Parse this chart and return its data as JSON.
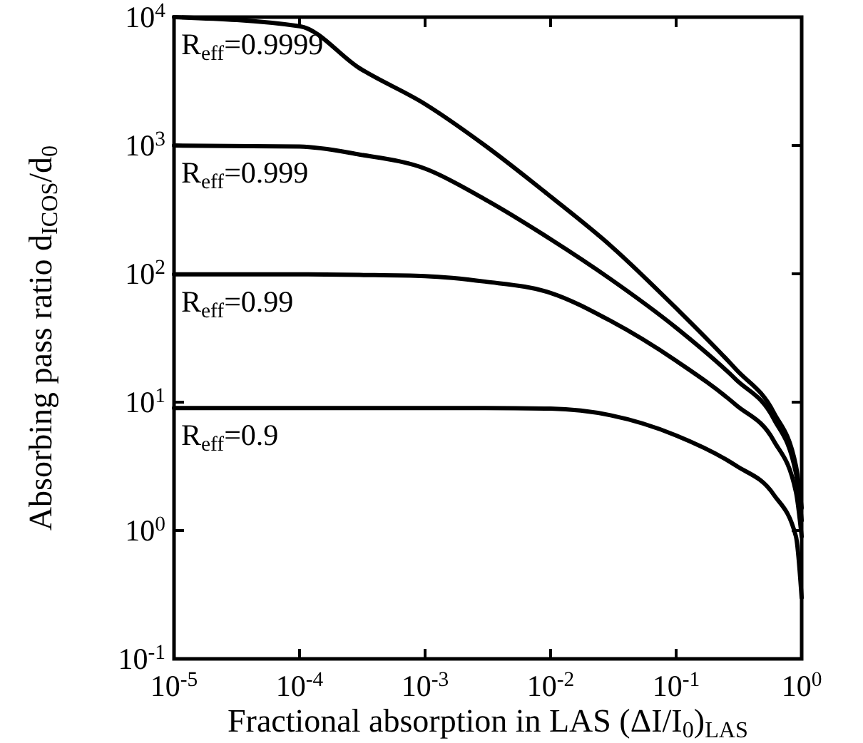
{
  "chart_data": {
    "type": "line",
    "xlabel": "Fractional absorption in LAS (ΔI/I$_{0}$)$_{LAS}$",
    "ylabel": "Absorbing pass ratio d$_{ICOS}$/d$_{0}$",
    "x": [
      1e-05,
      0.0001,
      0.0003,
      0.001,
      0.003,
      0.01,
      0.03,
      0.1,
      0.3,
      0.6,
      0.9,
      1
    ],
    "series": [
      {
        "name": "R$_{eff}$=0.9999",
        "color": "#000000",
        "values": [
          9999,
          8500,
          4000,
          2100,
          1000,
          400,
          166,
          54,
          18,
          8.3,
          3.2,
          1.5
        ]
      },
      {
        "name": "R$_{eff}$=0.999",
        "color": "#000000",
        "values": [
          999,
          980,
          850,
          660,
          380,
          186,
          91,
          38,
          15,
          7.4,
          2.8,
          1.2
        ]
      },
      {
        "name": "R$_{eff}$=0.99",
        "color": "#000000",
        "values": [
          99,
          99,
          98,
          96,
          87,
          71,
          43,
          21,
          9.5,
          5,
          2,
          0.9
        ]
      },
      {
        "name": "R$_{eff}$=0.9",
        "color": "#000000",
        "values": [
          9,
          9,
          9,
          9,
          9,
          8.9,
          7.9,
          5.5,
          3.2,
          1.9,
          0.9,
          0.3
        ]
      }
    ],
    "log": "xy",
    "xlim": [
      1e-05,
      1
    ],
    "ylim": [
      0.1,
      10000
    ],
    "xticks": [
      {
        "value": 1e-05,
        "label": "10$^{-5}$"
      },
      {
        "value": 0.0001,
        "label": "10$^{-4}$"
      },
      {
        "value": 0.001,
        "label": "10$^{-3}$"
      },
      {
        "value": 0.01,
        "label": "10$^{-2}$"
      },
      {
        "value": 0.1,
        "label": "10$^{-1}$"
      },
      {
        "value": 1,
        "label": "10$^{0}$"
      }
    ],
    "yticks": [
      {
        "value": 0.1,
        "label": "10$^{-1}$"
      },
      {
        "value": 1,
        "label": "10$^{0}$"
      },
      {
        "value": 10,
        "label": "10$^{1}$"
      },
      {
        "value": 100,
        "label": "10$^{2}$"
      },
      {
        "value": 1000,
        "label": "10$^{3}$"
      },
      {
        "value": 10000,
        "label": "10$^{4}$"
      }
    ],
    "grid": false,
    "marker": "none",
    "line_style": "solid"
  }
}
